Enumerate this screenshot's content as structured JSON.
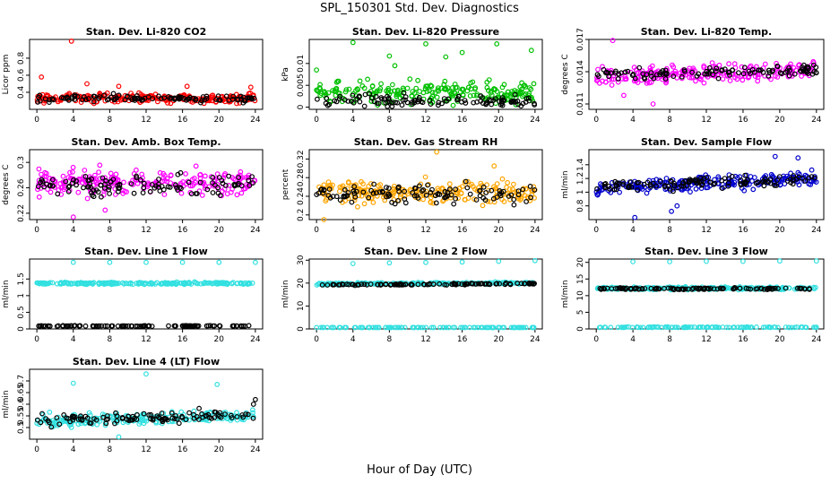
{
  "figure": {
    "title": "SPL_150301  Std. Dev. Diagnostics",
    "xlabel": "Hour of Day (UTC)"
  },
  "chart_data": [
    {
      "type": "scatter",
      "title": "Stan. Dev. Li-820 CO2",
      "ylabel": "Licor ppm",
      "xlim": [
        -0.8,
        24.8
      ],
      "ylim": [
        0.2,
        1.02
      ],
      "xticks": [
        "0",
        "4",
        "8",
        "12",
        "16",
        "20",
        "24"
      ],
      "yticks": [
        0.4,
        0.6,
        0.8
      ],
      "grid": false,
      "series": [
        {
          "color": "#ff0000",
          "base": 0.33,
          "spread": 0.045,
          "trend": 0,
          "outliers": [
            [
              0.5,
              0.58
            ],
            [
              3.8,
              1.0
            ],
            [
              5.5,
              0.5
            ],
            [
              9,
              0.47
            ],
            [
              16.5,
              0.47
            ],
            [
              23.5,
              0.46
            ]
          ]
        },
        {
          "color": "#000000",
          "base": 0.33,
          "spread": 0.035,
          "trend": 0,
          "outliers": []
        }
      ]
    },
    {
      "type": "scatter",
      "title": "Stan. Dev. Li-820 Pressure",
      "ylabel": "kPa",
      "xlim": [
        -0.8,
        24.8
      ],
      "ylim": [
        -0.0005,
        0.0155
      ],
      "xticks": [
        "0",
        "4",
        "8",
        "12",
        "16",
        "20",
        "24"
      ],
      "yticks": [
        0.0,
        0.005,
        0.01
      ],
      "grid": false,
      "series": [
        {
          "color": "#00c000",
          "base": 0.0032,
          "spread": 0.0022,
          "trend": 0,
          "outliers": [
            [
              0,
              0.0085
            ],
            [
              4,
              0.0148
            ],
            [
              8,
              0.0117
            ],
            [
              8.6,
              0.0095
            ],
            [
              12,
              0.0145
            ],
            [
              14.2,
              0.0115
            ],
            [
              16,
              0.0125
            ],
            [
              19.8,
              0.0145
            ],
            [
              23.6,
              0.013
            ]
          ]
        },
        {
          "color": "#000000",
          "base": 0.0015,
          "spread": 0.0012,
          "trend": 0,
          "outliers": []
        }
      ]
    },
    {
      "type": "scatter",
      "title": "Stan. Dev. Li-820 Temp.",
      "ylabel": "degrees C",
      "xlim": [
        -0.8,
        24.8
      ],
      "ylim": [
        0.0105,
        0.017
      ],
      "xticks": [
        "0",
        "4",
        "8",
        "12",
        "16",
        "20",
        "24"
      ],
      "yticks": [
        0.011,
        0.014,
        0.017
      ],
      "grid": false,
      "series": [
        {
          "color": "#ff00ff",
          "base": 0.0135,
          "spread": 0.00065,
          "trend": 3e-05,
          "outliers": [
            [
              1.8,
              0.0169
            ],
            [
              6.2,
              0.011
            ],
            [
              3,
              0.0118
            ]
          ]
        },
        {
          "color": "#000000",
          "base": 0.0137,
          "spread": 0.0005,
          "trend": 2e-05,
          "outliers": []
        }
      ]
    },
    {
      "type": "scatter",
      "title": "Stan. Dev. Amb. Box Temp.",
      "ylabel": "degrees C",
      "xlim": [
        -0.8,
        24.8
      ],
      "ylim": [
        0.21,
        0.32
      ],
      "xticks": [
        "0",
        "4",
        "8",
        "12",
        "16",
        "20",
        "24"
      ],
      "yticks": [
        0.22,
        0.26,
        0.3
      ],
      "grid": false,
      "series": [
        {
          "color": "#ff00ff",
          "base": 0.268,
          "spread": 0.016,
          "trend": 0,
          "outliers": [
            [
              4,
              0.214
            ],
            [
              7.5,
              0.225
            ]
          ]
        },
        {
          "color": "#000000",
          "base": 0.265,
          "spread": 0.013,
          "trend": 0,
          "outliers": []
        }
      ]
    },
    {
      "type": "scatter",
      "title": "Stan. Dev. Gas Stream RH",
      "ylabel": "percent",
      "xlim": [
        -0.8,
        24.8
      ],
      "ylim": [
        0.19,
        0.34
      ],
      "xticks": [
        "0",
        "4",
        "8",
        "12",
        "16",
        "20",
        "24"
      ],
      "yticks": [
        0.2,
        0.24,
        0.28,
        0.32
      ],
      "grid": false,
      "series": [
        {
          "color": "#ffa500",
          "base": 0.248,
          "spread": 0.02,
          "trend": 0,
          "outliers": [
            [
              13.2,
              0.335
            ],
            [
              0.8,
              0.19
            ],
            [
              19.5,
              0.305
            ]
          ]
        },
        {
          "color": "#000000",
          "base": 0.245,
          "spread": 0.016,
          "trend": 0,
          "outliers": []
        }
      ]
    },
    {
      "type": "scatter",
      "title": "Stan. Dev. Sample Flow",
      "ylabel": "ml/min",
      "xlim": [
        -0.8,
        24.8
      ],
      "ylim": [
        0.6,
        1.62
      ],
      "xticks": [
        "0",
        "4",
        "8",
        "12",
        "16",
        "20",
        "24"
      ],
      "yticks": [
        0.8,
        1.0,
        1.2,
        1.4
      ],
      "grid": false,
      "series": [
        {
          "color": "#0000cd",
          "base": 1.06,
          "spread": 0.09,
          "trend": 0.006,
          "outliers": [
            [
              4.2,
              0.63
            ],
            [
              19.5,
              1.52
            ],
            [
              22,
              1.5
            ],
            [
              8.2,
              0.72
            ],
            [
              8.8,
              0.8
            ]
          ]
        },
        {
          "color": "#000000",
          "base": 1.08,
          "spread": 0.07,
          "trend": 0.005,
          "outliers": []
        }
      ]
    },
    {
      "type": "scatter",
      "title": "Stan. Dev. Line 1 Flow",
      "ylabel": "ml/min",
      "xlim": [
        -0.8,
        24.8
      ],
      "ylim": [
        0,
        2.1
      ],
      "xticks": [
        "0",
        "4",
        "8",
        "12",
        "16",
        "20",
        "24"
      ],
      "yticks": [
        0.0,
        0.5,
        1.0,
        1.5
      ],
      "grid": false,
      "series": [
        {
          "color": "#33e0e0",
          "base": 1.37,
          "spread": 0.025,
          "trend": 0,
          "outliers": [
            [
              4,
              2.0
            ],
            [
              8,
              2.0
            ],
            [
              12,
              2.0
            ],
            [
              16,
              2.0
            ],
            [
              20,
              2.0
            ],
            [
              24,
              2.0
            ]
          ]
        },
        {
          "color": "#000000",
          "base": 0.09,
          "spread": 0.008,
          "trend": 0,
          "outliers": []
        }
      ]
    },
    {
      "type": "scatter",
      "title": "Stan. Dev. Line 2 Flow",
      "ylabel": "ml/min",
      "xlim": [
        -0.8,
        24.8
      ],
      "ylim": [
        0,
        30.5
      ],
      "xticks": [
        "0",
        "4",
        "8",
        "12",
        "16",
        "20",
        "24"
      ],
      "yticks": [
        0,
        10,
        20,
        30
      ],
      "grid": false,
      "series": [
        {
          "color": "#33e0e0",
          "base": 19.6,
          "spread": 0.35,
          "trend": 0.02,
          "outliers": [
            [
              4,
              28.5
            ],
            [
              8,
              28.8
            ],
            [
              12,
              29.0
            ],
            [
              16,
              29.2
            ],
            [
              20,
              29.5
            ],
            [
              24,
              29.8
            ]
          ]
        },
        {
          "color": "#33e0e0",
          "base": 0.4,
          "spread": 0.1,
          "trend": 0,
          "outliers": []
        },
        {
          "color": "#000000",
          "base": 19.2,
          "spread": 0.25,
          "trend": 0.025,
          "outliers": []
        }
      ]
    },
    {
      "type": "scatter",
      "title": "Stan. Dev. Line 3 Flow",
      "ylabel": "ml/min",
      "xlim": [
        -0.8,
        24.8
      ],
      "ylim": [
        0,
        21
      ],
      "xticks": [
        "0",
        "4",
        "8",
        "12",
        "16",
        "20",
        "24"
      ],
      "yticks": [
        0,
        5,
        10,
        15,
        20
      ],
      "grid": false,
      "series": [
        {
          "color": "#33e0e0",
          "base": 12.2,
          "spread": 0.35,
          "trend": 0,
          "outliers": [
            [
              4,
              20.2
            ],
            [
              8,
              20.2
            ],
            [
              12,
              20.3
            ],
            [
              16,
              20.3
            ],
            [
              20,
              20.4
            ],
            [
              24,
              20.4
            ]
          ]
        },
        {
          "color": "#33e0e0",
          "base": 0.5,
          "spread": 0.1,
          "trend": 0,
          "outliers": []
        },
        {
          "color": "#000000",
          "base": 12.1,
          "spread": 0.25,
          "trend": 0,
          "outliers": []
        }
      ]
    },
    {
      "type": "scatter",
      "title": "Stan. Dev. Line 4 (LT) Flow",
      "ylabel": "ml/min",
      "xlim": [
        -0.8,
        24.8
      ],
      "ylim": [
        0.45,
        0.75
      ],
      "xticks": [
        "0",
        "4",
        "8",
        "12",
        "16",
        "20",
        "24"
      ],
      "yticks": [
        0.5,
        0.55,
        0.6,
        0.65,
        0.7
      ],
      "grid": false,
      "series": [
        {
          "color": "#33e0e0",
          "base": 0.53,
          "spread": 0.02,
          "trend": 0.0008,
          "outliers": [
            [
              4,
              0.69
            ],
            [
              12,
              0.73
            ],
            [
              19.8,
              0.685
            ],
            [
              9,
              0.46
            ]
          ]
        },
        {
          "color": "#000000",
          "base": 0.53,
          "spread": 0.02,
          "trend": 0.0009,
          "outliers": [
            [
              24,
              0.62
            ],
            [
              23.8,
              0.6
            ]
          ]
        }
      ]
    }
  ]
}
